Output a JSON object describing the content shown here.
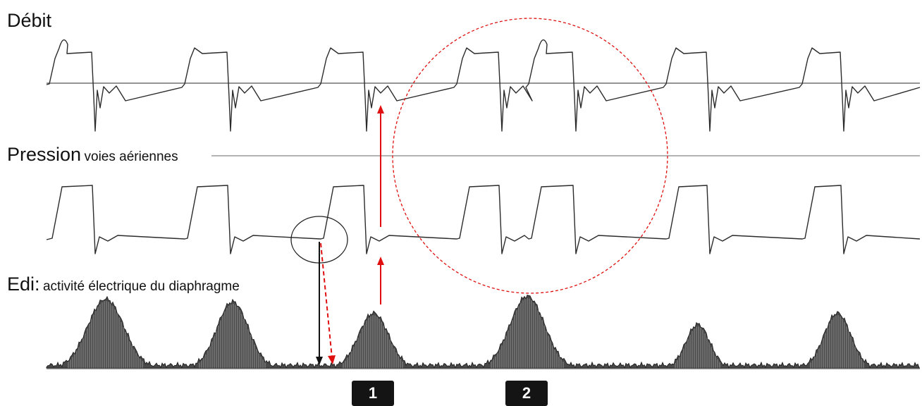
{
  "labels": {
    "flow": "Débit",
    "pressure_main": "Pression",
    "pressure_sub": "voies aériennes",
    "edi_main": "Edi:",
    "edi_sub": "activité électrique du diaphragme"
  },
  "markers": [
    "1",
    "2"
  ],
  "colors": {
    "trace": "#2b2b2b",
    "baseline": "#555555",
    "annotation_red": "#e01010",
    "annotation_black": "#111111",
    "edi_fill": "#3a3a3a",
    "marker_bg": "#141414"
  }
}
